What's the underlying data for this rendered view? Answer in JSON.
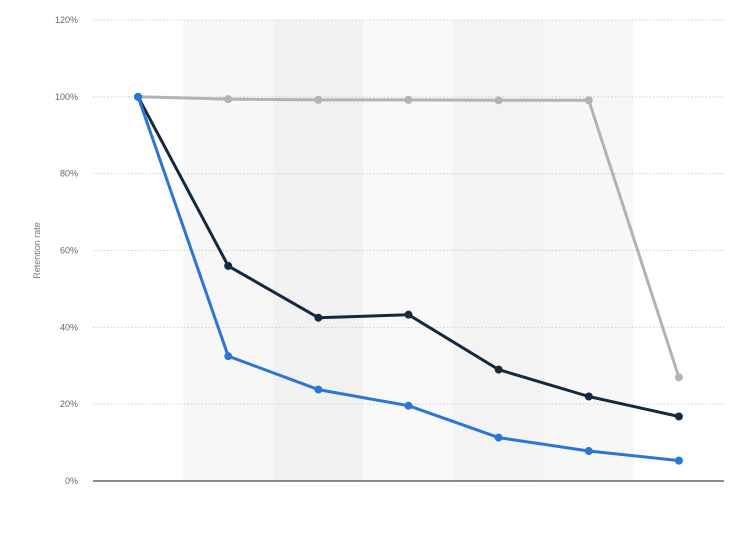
{
  "chart_data": {
    "type": "line",
    "title": "",
    "xlabel": "",
    "ylabel": "Retention rate",
    "ylim": [
      0,
      120
    ],
    "y_ticks": [
      "0%",
      "20%",
      "40%",
      "60%",
      "80%",
      "100%",
      "120%"
    ],
    "x_count": 7,
    "grid": true,
    "series": [
      {
        "color": "#b3b3b3",
        "values": [
          100,
          99.4,
          99.2,
          99.2,
          99.1,
          99.1,
          27
        ]
      },
      {
        "color": "#14293f",
        "values": [
          100,
          56,
          42.5,
          43.3,
          29,
          22,
          16.8
        ]
      },
      {
        "color": "#2a76d6",
        "values": [
          100,
          32.5,
          23.8,
          19.6,
          11.3,
          7.8,
          5.3
        ]
      }
    ]
  }
}
